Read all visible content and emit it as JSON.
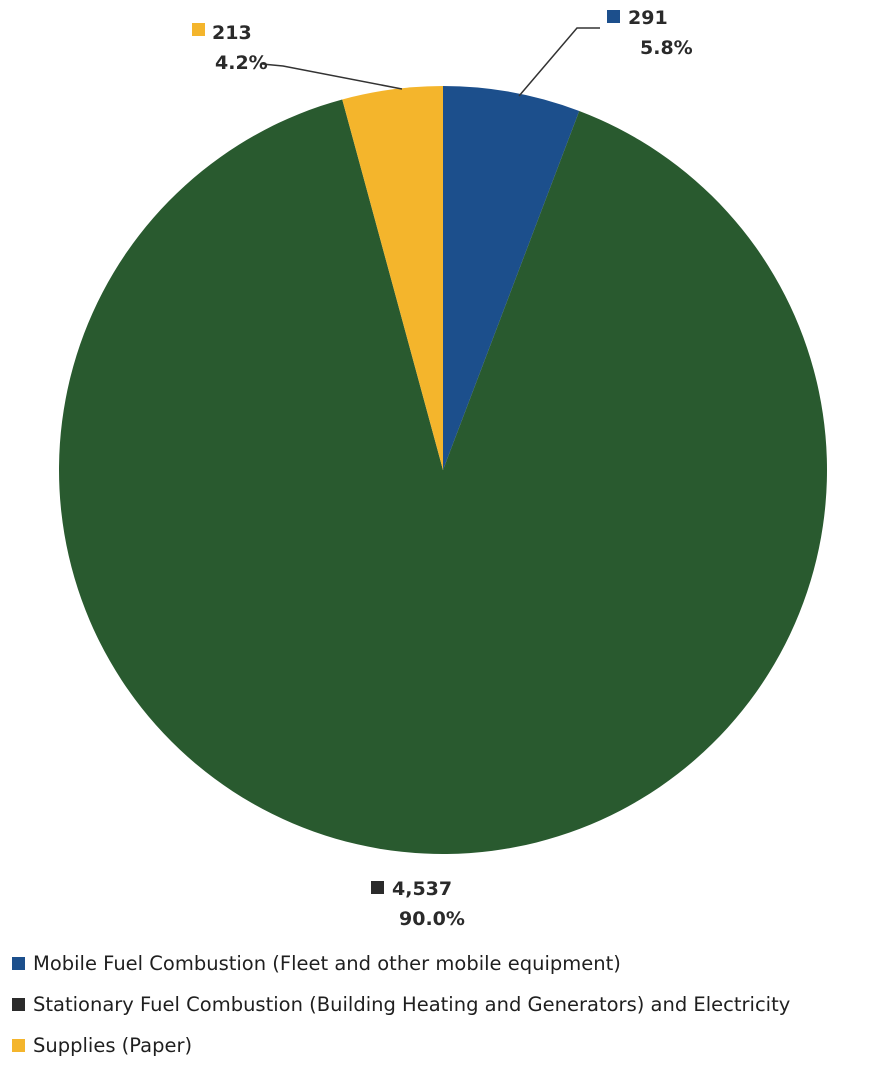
{
  "chart_data": {
    "type": "pie",
    "title": "",
    "start_angle_deg": 0,
    "direction": "clockwise",
    "slices": [
      {
        "name": "Mobile Fuel Combustion (Fleet and other mobile equipment)",
        "value": 291,
        "value_label": "291",
        "percent": 5.8,
        "percent_label": "5.8%",
        "color": "#1c4f8c",
        "marker_color": "#1c4f8c"
      },
      {
        "name": "Stationary Fuel Combustion (Building Heating and Generators) and Electricity",
        "value": 4537,
        "value_label": "4,537",
        "percent": 90.0,
        "percent_label": "90.0%",
        "color": "#295a2f",
        "marker_color": "#2b2b2b"
      },
      {
        "name": "Supplies (Paper)",
        "value": 213,
        "value_label": "213",
        "percent": 4.2,
        "percent_label": "4.2%",
        "color": "#f4b52c",
        "marker_color": "#f4b52c"
      }
    ],
    "legend_position": "bottom-left"
  }
}
